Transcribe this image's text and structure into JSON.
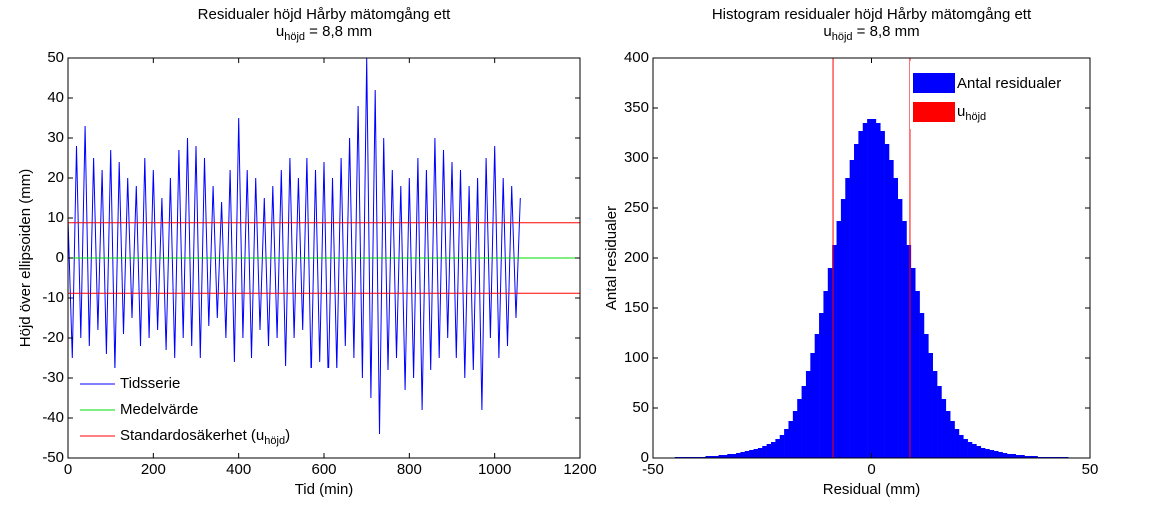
{
  "chart_data": [
    {
      "type": "line",
      "title": "Residualer höjd Hårby mätomgång ett",
      "subtitle": {
        "main": "u",
        "sub": "höjd",
        "rest": " = 8,8 mm"
      },
      "xlabel": "Tid (min)",
      "ylabel": "Höjd över ellipsoiden (mm)",
      "xlim": [
        0,
        1200
      ],
      "xticks": [
        0,
        200,
        400,
        600,
        800,
        1000,
        1200
      ],
      "ylim": [
        -50,
        50
      ],
      "yticks": [
        -50,
        -40,
        -30,
        -20,
        -10,
        0,
        10,
        20,
        30,
        40,
        50
      ],
      "x": [
        0,
        10,
        20,
        30,
        40,
        50,
        60,
        70,
        80,
        90,
        100,
        110,
        120,
        130,
        140,
        150,
        160,
        170,
        180,
        190,
        200,
        210,
        220,
        230,
        240,
        250,
        260,
        270,
        280,
        290,
        300,
        310,
        320,
        330,
        340,
        350,
        360,
        370,
        380,
        390,
        400,
        410,
        420,
        430,
        440,
        450,
        460,
        470,
        480,
        490,
        500,
        510,
        520,
        530,
        540,
        550,
        560,
        570,
        580,
        590,
        600,
        610,
        620,
        630,
        640,
        650,
        660,
        670,
        680,
        690,
        700,
        710,
        720,
        730,
        740,
        750,
        760,
        770,
        780,
        790,
        800,
        810,
        820,
        830,
        840,
        850,
        860,
        870,
        880,
        890,
        900,
        910,
        920,
        930,
        940,
        950,
        960,
        970,
        980,
        990,
        1000,
        1010,
        1020,
        1030,
        1040,
        1050,
        1060
      ],
      "series": [
        {
          "name": "Tidsserie",
          "color": "#0000ff",
          "values": [
            10,
            -25,
            28,
            -20,
            33,
            -22,
            25,
            -18,
            22,
            -24,
            27,
            -28,
            24,
            -19,
            20,
            -15,
            18,
            -22,
            25,
            -20,
            22,
            -18,
            15,
            -23,
            20,
            -25,
            27,
            -20,
            30,
            -22,
            28,
            -25,
            25,
            -17,
            18,
            -15,
            14,
            -20,
            22,
            -26,
            35,
            -20,
            22,
            -25,
            20,
            -18,
            15,
            -22,
            18,
            -20,
            22,
            -27,
            25,
            -20,
            20,
            -18,
            25,
            -30,
            22,
            -26,
            24,
            -32,
            20,
            -28,
            25,
            -22,
            30,
            -25,
            38,
            -30,
            50,
            -35,
            42,
            -44,
            30,
            -28,
            22,
            -25,
            18,
            -33,
            20,
            -30,
            25,
            -38,
            22,
            -28,
            30,
            -25,
            27,
            -20,
            24,
            -25,
            22,
            -30,
            18,
            -28,
            20,
            -38,
            25,
            -20,
            28,
            -25,
            20,
            -22,
            18,
            -15,
            15
          ]
        }
      ],
      "hlines": [
        {
          "name": "Medelvärde",
          "color": "#00dd00",
          "values": [
            0
          ]
        },
        {
          "name": "Standardosäkerhet (u",
          "name_sub": "höjd",
          "name_end": ")",
          "color": "#ff0000",
          "values": [
            8.8,
            -8.8
          ]
        }
      ]
    },
    {
      "type": "histogram",
      "title": "Histogram residualer höjd Hårby mätomgång ett",
      "subtitle": {
        "main": "u",
        "sub": "höjd",
        "rest": " = 8,8 mm"
      },
      "xlabel": "Residual (mm)",
      "ylabel": "Antal residualer",
      "xlim": [
        -50,
        50
      ],
      "xticks": [
        -50,
        0,
        50
      ],
      "ylim": [
        0,
        400
      ],
      "yticks": [
        0,
        50,
        100,
        150,
        200,
        250,
        300,
        350,
        400
      ],
      "series_name": "Antal residualer",
      "color": "#0000ff",
      "bins": [
        -50,
        -49,
        -48,
        -47,
        -46,
        -45,
        -44,
        -43,
        -42,
        -41,
        -40,
        -39,
        -38,
        -37,
        -36,
        -35,
        -34,
        -33,
        -32,
        -31,
        -30,
        -29,
        -28,
        -27,
        -26,
        -25,
        -24,
        -23,
        -22,
        -21,
        -20,
        -19,
        -18,
        -17,
        -16,
        -15,
        -14,
        -13,
        -12,
        -11,
        -10,
        -9,
        -8,
        -7,
        -6,
        -5,
        -4,
        -3,
        -2,
        -1,
        0,
        1,
        2,
        3,
        4,
        5,
        6,
        7,
        8,
        9,
        10,
        11,
        12,
        13,
        14,
        15,
        16,
        17,
        18,
        19,
        20,
        21,
        22,
        23,
        24,
        25,
        26,
        27,
        28,
        29,
        30,
        31,
        32,
        33,
        34,
        35,
        36,
        37,
        38,
        39,
        40,
        41,
        42,
        43,
        44,
        45,
        46,
        47,
        48,
        49,
        50
      ],
      "counts": [
        0,
        0,
        0,
        0,
        0,
        1,
        1,
        1,
        1,
        1,
        1,
        1,
        2,
        2,
        2,
        3,
        3,
        4,
        4,
        5,
        6,
        7,
        8,
        9,
        10,
        12,
        14,
        16,
        19,
        23,
        29,
        37,
        47,
        59,
        72,
        87,
        105,
        124,
        145,
        167,
        190,
        213,
        237,
        259,
        280,
        298,
        314,
        327,
        335,
        339,
        339,
        335,
        327,
        314,
        298,
        280,
        259,
        237,
        213,
        190,
        167,
        145,
        124,
        105,
        87,
        72,
        59,
        47,
        37,
        29,
        23,
        19,
        16,
        14,
        12,
        10,
        9,
        8,
        7,
        6,
        5,
        4,
        4,
        3,
        3,
        2,
        2,
        2,
        1,
        1,
        1,
        1,
        1,
        1,
        1,
        0,
        0,
        0,
        0,
        0
      ],
      "vlines": {
        "name": "u",
        "name_sub": "höjd",
        "color": "#ff0000",
        "values": [
          -8.8,
          8.8
        ]
      }
    }
  ]
}
